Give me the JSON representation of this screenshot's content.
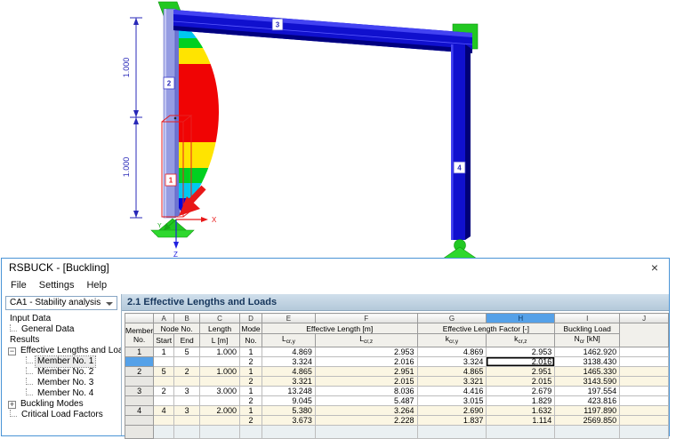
{
  "window": {
    "title": "RSBUCK - [Buckling]",
    "menu": [
      "File",
      "Settings",
      "Help"
    ]
  },
  "icons": {
    "close": "×",
    "tree_collapse": "−",
    "tree_expand": "+"
  },
  "sidebar": {
    "case_selector": "CA1 - Stability analysis",
    "tree": [
      {
        "label": "Input Data",
        "level": 0
      },
      {
        "label": "General Data",
        "level": 1,
        "connector": true
      },
      {
        "label": "Results",
        "level": 0
      },
      {
        "label": "Effective Lengths and Loads",
        "level": 1,
        "expander": "minus"
      },
      {
        "label": "Member No. 1",
        "level": 2,
        "connector": true,
        "selected": true
      },
      {
        "label": "Member No. 2",
        "level": 2,
        "connector": true
      },
      {
        "label": "Member No. 3",
        "level": 2,
        "connector": true
      },
      {
        "label": "Member No. 4",
        "level": 2,
        "connector": true
      },
      {
        "label": "Buckling Modes",
        "level": 1,
        "expander": "plus"
      },
      {
        "label": "Critical Load Factors",
        "level": 1,
        "connector": true
      }
    ]
  },
  "table": {
    "section_title": "2.1 Effective Lengths and Loads",
    "column_letters": [
      "A",
      "B",
      "C",
      "D",
      "E",
      "F",
      "G",
      "H",
      "I",
      "J"
    ],
    "selected_letter": "H",
    "headers": {
      "member_line1": "Member",
      "member_line2": "No.",
      "node_no": "Node No.",
      "start": "Start",
      "end": "End",
      "length_line1": "Length",
      "length_line2": "L [m]",
      "mode_line1": "Mode",
      "mode_line2": "No.",
      "eff_length": "Effective Length [m]",
      "eff_factor": "Effective Length Factor [-]",
      "buckling_line1": "Buckling Load",
      "l_main": "L",
      "k_main": "k",
      "sub_y": "cr,y",
      "sub_z": "cr,z",
      "ncr_main": "N",
      "ncr_sub": "cr",
      "ncr_unit": " [kN]"
    },
    "rows": [
      {
        "member": "1",
        "start": "1",
        "end": "5",
        "length": "1.000",
        "mode": "1",
        "lcry": "4.869",
        "lcrz": "2.953",
        "kcry": "4.869",
        "kcrz": "2.953",
        "ncr": "1462.920",
        "stripe": "w"
      },
      {
        "member": "",
        "start": "",
        "end": "",
        "length": "",
        "mode": "2",
        "lcry": "3.324",
        "lcrz": "2.016",
        "kcry": "3.324",
        "kcrz": "2.016",
        "ncr": "3138.430",
        "stripe": "w",
        "hdr_selected": true,
        "active": "kcrz"
      },
      {
        "member": "2",
        "start": "5",
        "end": "2",
        "length": "1.000",
        "mode": "1",
        "lcry": "4.865",
        "lcrz": "2.951",
        "kcry": "4.865",
        "kcrz": "2.951",
        "ncr": "1465.330",
        "stripe": "c"
      },
      {
        "member": "",
        "start": "",
        "end": "",
        "length": "",
        "mode": "2",
        "lcry": "3.321",
        "lcrz": "2.015",
        "kcry": "3.321",
        "kcrz": "2.015",
        "ncr": "3143.590",
        "stripe": "c"
      },
      {
        "member": "3",
        "start": "2",
        "end": "3",
        "length": "3.000",
        "mode": "1",
        "lcry": "13.248",
        "lcrz": "8.036",
        "kcry": "4.416",
        "kcrz": "2.679",
        "ncr": "197.554",
        "stripe": "w"
      },
      {
        "member": "",
        "start": "",
        "end": "",
        "length": "",
        "mode": "2",
        "lcry": "9.045",
        "lcrz": "5.487",
        "kcry": "3.015",
        "kcrz": "1.829",
        "ncr": "423.816",
        "stripe": "w"
      },
      {
        "member": "4",
        "start": "4",
        "end": "3",
        "length": "2.000",
        "mode": "1",
        "lcry": "5.380",
        "lcrz": "3.264",
        "kcry": "2.690",
        "kcrz": "1.632",
        "ncr": "1197.890",
        "stripe": "c"
      },
      {
        "member": "",
        "start": "",
        "end": "",
        "length": "",
        "mode": "2",
        "lcry": "3.673",
        "lcrz": "2.228",
        "kcry": "1.837",
        "kcrz": "1.114",
        "ncr": "2569.850",
        "stripe": "c"
      },
      {
        "empty": true
      }
    ]
  },
  "model": {
    "member_labels": {
      "m1": "1",
      "m2": "2",
      "m3": "3",
      "m4": "4"
    },
    "dimensions": {
      "upper": "1.000",
      "lower": "1.000"
    },
    "axes": {
      "x": "X",
      "y": "Y",
      "z": "Z"
    },
    "colors": {
      "beam_blue": "#1010ce",
      "column_light": "#959ce2",
      "support_green": "#22c822",
      "selection_red": "#e82020",
      "dimension_blue": "#2828b8",
      "mode_shape_scale": [
        "#0008d8",
        "#00c8f0",
        "#00d020",
        "#ffe400",
        "#f00404"
      ]
    }
  }
}
